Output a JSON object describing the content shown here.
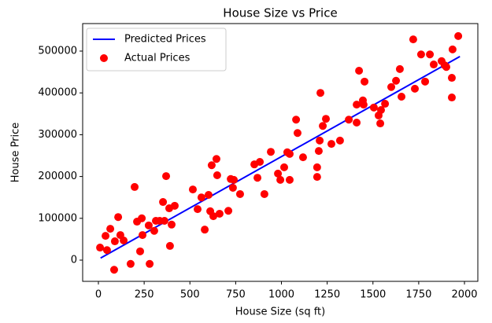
{
  "chart_data": {
    "type": "scatter",
    "title": "House Size vs Price",
    "x_label": "House Size (sq ft)",
    "y_label": "House Price",
    "xlim": [
      -86,
      2073
    ],
    "ylim": [
      -50750,
      565800
    ],
    "xticks": [
      0,
      250,
      500,
      750,
      1000,
      1250,
      1500,
      1750,
      2000
    ],
    "yticks": [
      0,
      100000,
      200000,
      300000,
      400000,
      500000
    ],
    "legend": "upper left",
    "series": [
      {
        "name": "Predicted Prices",
        "type": "line",
        "color": "#0000ff",
        "x": [
          12,
          1975
        ],
        "values": [
          5000,
          487000
        ]
      },
      {
        "name": "Actual Prices",
        "type": "scatter",
        "color": "#ff0000",
        "x": [
          9,
          39,
          47,
          65,
          86,
          90,
          108,
          120,
          138,
          176,
          198,
          211,
          228,
          237,
          241,
          275,
          280,
          305,
          314,
          335,
          353,
          361,
          370,
          387,
          391,
          400,
          417,
          516,
          542,
          563,
          581,
          602,
          611,
          619,
          628,
          645,
          649,
          662,
          710,
          723,
          735,
          740,
          774,
          852,
          869,
          882,
          907,
          942,
          981,
          994,
          1015,
          1032,
          1045,
          1045,
          1080,
          1088,
          1118,
          1195,
          1195,
          1204,
          1209,
          1213,
          1226,
          1243,
          1273,
          1320,
          1368,
          1411,
          1411,
          1424,
          1445,
          1449,
          1454,
          1505,
          1531,
          1540,
          1544,
          1566,
          1600,
          1626,
          1647,
          1656,
          1720,
          1729,
          1763,
          1785,
          1811,
          1832,
          1875,
          1892,
          1901,
          1931,
          1931,
          1935,
          1966
        ],
        "values": [
          30000,
          58000,
          24000,
          75000,
          -23000,
          45000,
          103000,
          60000,
          47000,
          -9000,
          175000,
          92000,
          21000,
          100000,
          60000,
          83000,
          -9000,
          70000,
          94000,
          94000,
          139000,
          94000,
          201000,
          124000,
          34000,
          85000,
          130000,
          169000,
          122000,
          150000,
          73000,
          156000,
          117000,
          227000,
          105000,
          242000,
          203000,
          111000,
          118000,
          194000,
          173000,
          192000,
          158000,
          229000,
          197000,
          235000,
          158000,
          259000,
          207000,
          192000,
          222000,
          258000,
          254000,
          192000,
          336000,
          304000,
          246000,
          199000,
          222000,
          261000,
          286000,
          400000,
          321000,
          338000,
          278000,
          286000,
          336000,
          329000,
          372000,
          453000,
          382000,
          372000,
          427000,
          365000,
          346000,
          327000,
          359000,
          374000,
          414000,
          429000,
          457000,
          391000,
          528000,
          410000,
          492000,
          427000,
          492000,
          468000,
          476000,
          466000,
          462000,
          436000,
          389000,
          504000,
          536000
        ]
      }
    ]
  }
}
